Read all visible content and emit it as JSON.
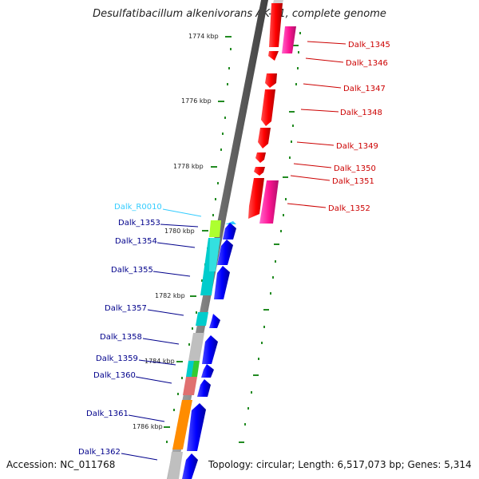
{
  "title": "Desulfatibacillum alkenivorans AK-01, complete genome",
  "accession": "Accession: NC_011768",
  "topology": "Topology: circular; Length: 6,517,073 bp; Genes: 5,314",
  "ticks": [
    "1774 kbp",
    "1776 kbp",
    "1778 kbp",
    "1780 kbp",
    "1782 kbp",
    "1784 kbp",
    "1786 kbp"
  ],
  "genes_right": [
    {
      "label": "Dalk_1345"
    },
    {
      "label": "Dalk_1346"
    },
    {
      "label": "Dalk_1347"
    },
    {
      "label": "Dalk_1348"
    },
    {
      "label": "Dalk_1349"
    },
    {
      "label": "Dalk_1350"
    },
    {
      "label": "Dalk_1351"
    },
    {
      "label": "Dalk_1352"
    }
  ],
  "genes_left": [
    {
      "label": "Dalk_R0010"
    },
    {
      "label": "Dalk_1353"
    },
    {
      "label": "Dalk_1354"
    },
    {
      "label": "Dalk_1355"
    },
    {
      "label": "Dalk_1357"
    },
    {
      "label": "Dalk_1358"
    },
    {
      "label": "Dalk_1359"
    },
    {
      "label": "Dalk_1360"
    },
    {
      "label": "Dalk_1361"
    },
    {
      "label": "Dalk_1362"
    }
  ],
  "colors": {
    "forward": "#ff0000",
    "forward_cog": "#ff1493",
    "reverse": "#0000ff",
    "rna": "#33ccff",
    "backbone": "#808080",
    "tick": "#228B22",
    "label_right": "#cc0000",
    "label_left": "#00008b"
  }
}
